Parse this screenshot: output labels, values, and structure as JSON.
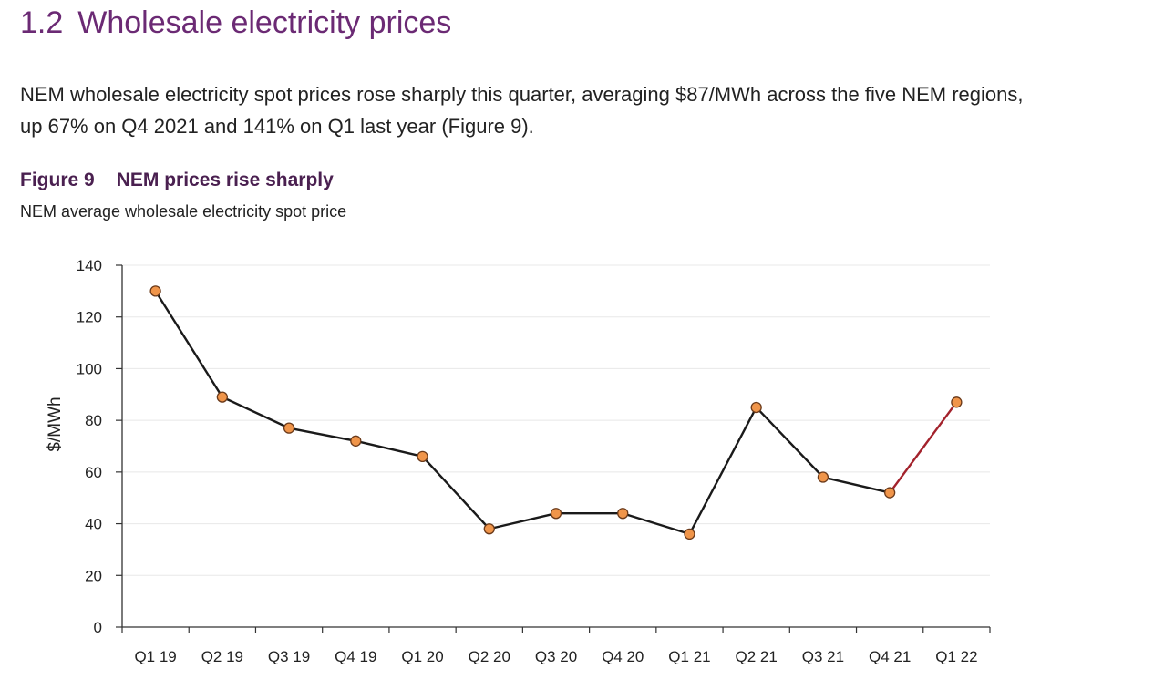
{
  "section": {
    "number": "1.2",
    "title": "Wholesale electricity prices",
    "intro_line1": "NEM wholesale electricity spot prices rose sharply this quarter, averaging $87/MWh across the five NEM regions,",
    "intro_line2": "up 67% on Q4 2021 and 141% on Q1 last year (Figure 9)."
  },
  "figure": {
    "label": "Figure 9",
    "title": "NEM prices rise sharply",
    "subtitle": "NEM average wholesale electricity spot price"
  },
  "colors": {
    "heading": "#6b2a74",
    "line": "#1a1a1a",
    "highlight_line": "#a3222c",
    "marker_fill": "#f0954a",
    "marker_stroke": "#6b3a1a",
    "grid": "#e8e8e8",
    "axis": "#333333"
  },
  "chart_data": {
    "type": "line",
    "title": "NEM prices rise sharply",
    "subtitle": "NEM average wholesale electricity spot price",
    "xlabel": "",
    "ylabel": "$/MWh",
    "ylim": [
      0,
      140
    ],
    "yticks": [
      0,
      20,
      40,
      60,
      80,
      100,
      120,
      140
    ],
    "grid": true,
    "categories": [
      "Q1 19",
      "Q2 19",
      "Q3 19",
      "Q4 19",
      "Q1 20",
      "Q2 20",
      "Q3 20",
      "Q4 20",
      "Q1 21",
      "Q2 21",
      "Q3 21",
      "Q4 21",
      "Q1 22"
    ],
    "series": [
      {
        "name": "NEM average wholesale electricity spot price",
        "values": [
          130,
          89,
          77,
          72,
          66,
          38,
          44,
          44,
          36,
          85,
          58,
          52,
          87
        ]
      }
    ],
    "highlight_last_segment": true
  }
}
